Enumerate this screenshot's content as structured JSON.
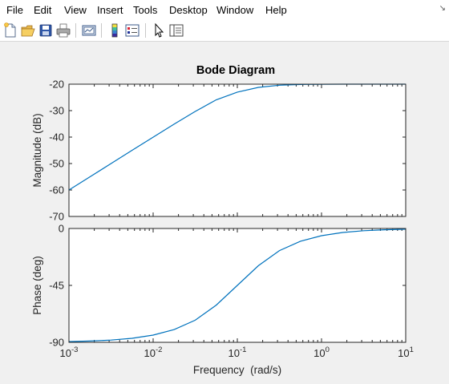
{
  "menu": {
    "items": [
      "File",
      "Edit",
      "View",
      "Insert",
      "Tools",
      "Desktop",
      "Window",
      "Help"
    ]
  },
  "toolbar": {
    "tools": [
      "new-figure-icon",
      "open-file-icon",
      "save-figure-icon",
      "print-figure-icon",
      "link-plot-icon",
      "insert-colorbar-icon",
      "insert-legend-icon",
      "edit-plot-icon",
      "property-inspector-icon"
    ]
  },
  "chart_data": {
    "type": "line",
    "title": "Bode Diagram",
    "xlabel": "Frequency  (rad/s)",
    "x_scale": "log",
    "xlim": [
      0.001,
      10
    ],
    "x_ticks": [
      0.001,
      0.01,
      0.1,
      1,
      10
    ],
    "x_tick_labels": [
      {
        "base": "10",
        "exp": "-3"
      },
      {
        "base": "10",
        "exp": "-2"
      },
      {
        "base": "10",
        "exp": "-1"
      },
      {
        "base": "10",
        "exp": "0"
      },
      {
        "base": "10",
        "exp": "1"
      }
    ],
    "line_color": "#0072bd",
    "panels": [
      {
        "name": "magnitude",
        "ylabel": "Magnitude (dB)",
        "ylim": [
          -70,
          -20
        ],
        "y_ticks": [
          -70,
          -60,
          -50,
          -40,
          -30,
          -20
        ],
        "y_tick_labels": [
          "-70",
          "-60",
          "-50",
          "-40",
          "-30",
          "-20"
        ],
        "x": [
          0.001,
          0.00178,
          0.00316,
          0.00562,
          0.01,
          0.0178,
          0.0316,
          0.0562,
          0.1,
          0.178,
          0.316,
          0.562,
          1,
          1.78,
          3.16,
          5.62,
          10
        ],
        "y": [
          -60,
          -55,
          -50,
          -45,
          -40.04,
          -35.1,
          -30.3,
          -25.9,
          -23,
          -21.2,
          -20.4,
          -20.13,
          -20.04,
          -20.01,
          -20,
          -20,
          -20
        ]
      },
      {
        "name": "phase",
        "ylabel": "Phase (deg)",
        "ylim": [
          -90,
          0
        ],
        "y_ticks": [
          -90,
          -45,
          0
        ],
        "y_tick_labels": [
          "-90",
          "-45",
          "0"
        ],
        "x": [
          0.001,
          0.00178,
          0.00316,
          0.00562,
          0.01,
          0.0178,
          0.0316,
          0.0562,
          0.1,
          0.178,
          0.316,
          0.562,
          1,
          1.78,
          3.16,
          5.62,
          10
        ],
        "y": [
          -89.4,
          -89,
          -88.2,
          -86.8,
          -84.3,
          -79.9,
          -72.5,
          -60.6,
          -45,
          -29.4,
          -17.5,
          -10.1,
          -5.7,
          -3.2,
          -1.8,
          -1,
          -0.6
        ]
      }
    ]
  }
}
